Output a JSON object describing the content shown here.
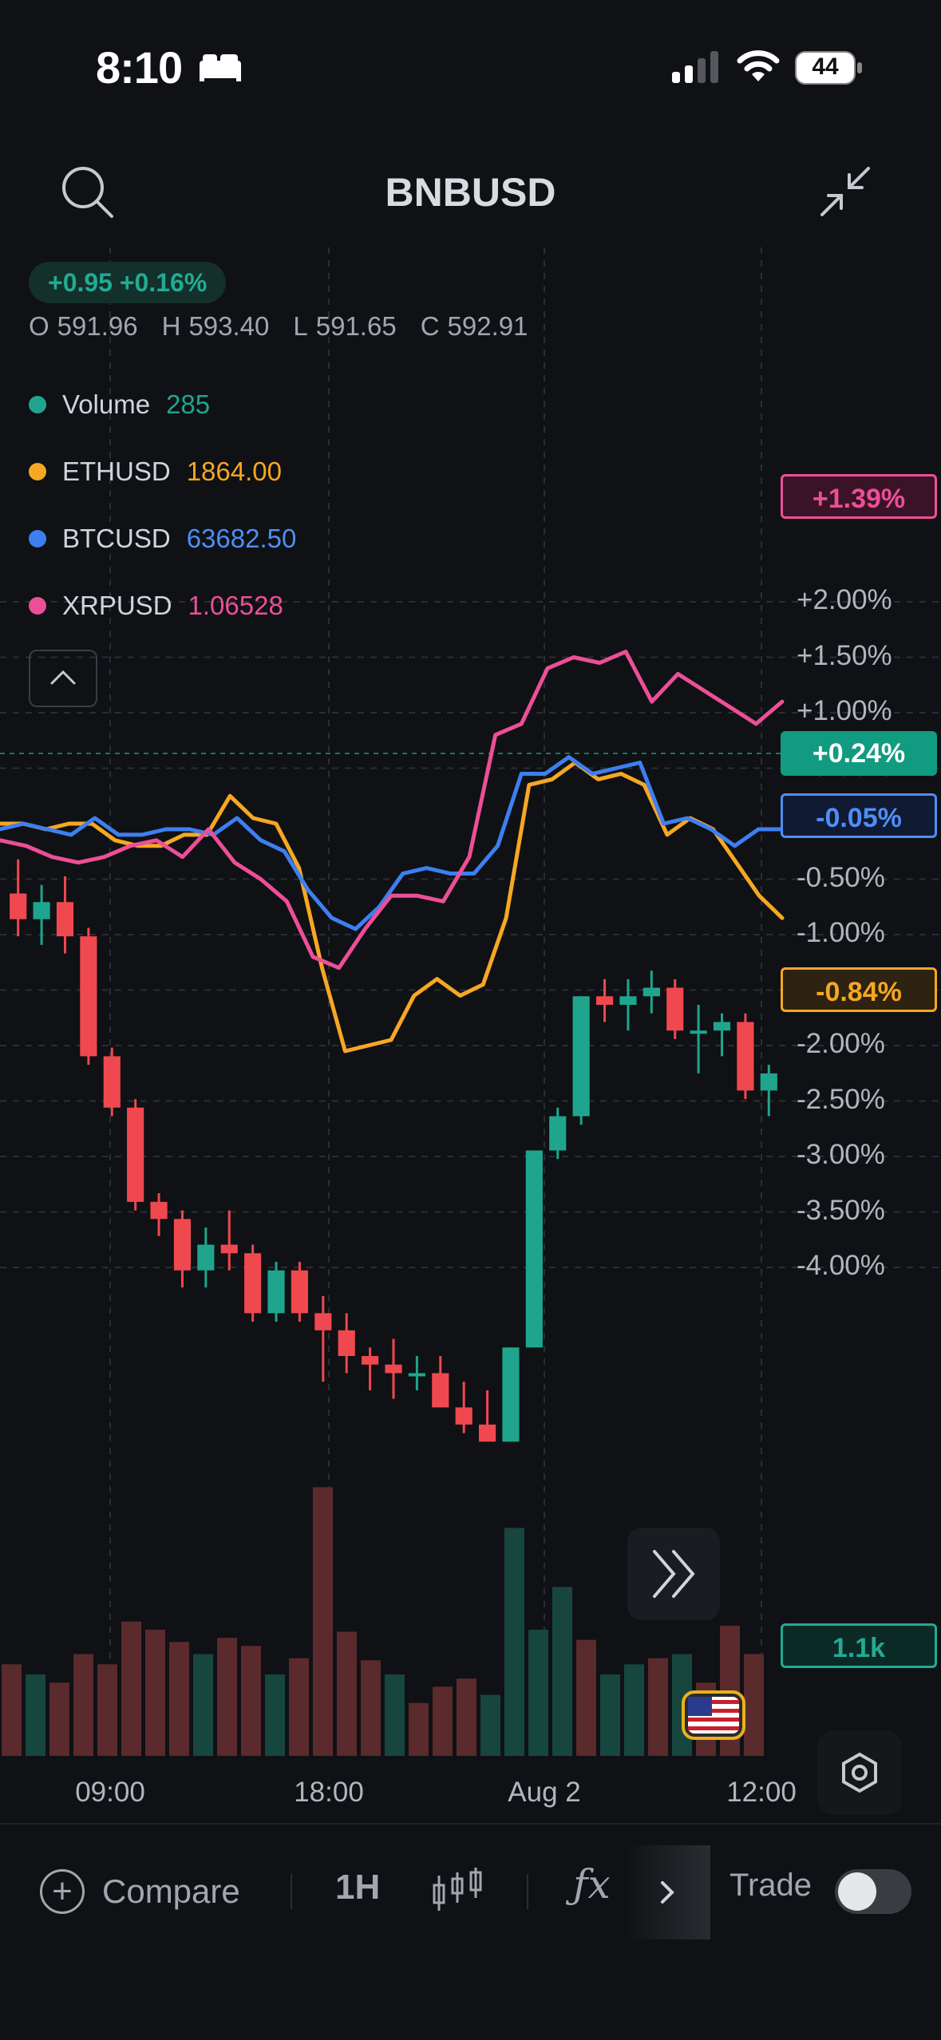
{
  "status_bar": {
    "time": "8:10",
    "battery": "44",
    "icons": [
      "bed-icon",
      "signal-icon",
      "wifi-icon",
      "battery-icon"
    ]
  },
  "header": {
    "symbol": "BNBUSD",
    "icons": [
      "search-icon",
      "collapse-icon"
    ]
  },
  "legend": {
    "change": "+0.95 +0.16%",
    "ohlc": [
      {
        "k": "O",
        "v": "591.96"
      },
      {
        "k": "H",
        "v": "593.40"
      },
      {
        "k": "L",
        "v": "591.65"
      },
      {
        "k": "C",
        "v": "592.91"
      }
    ],
    "rows": [
      {
        "name": "Volume",
        "value": "285",
        "color": "#1fa58e"
      },
      {
        "name": "ETHUSD",
        "value": "1864.00",
        "color": "#f6a723"
      },
      {
        "name": "BTCUSD",
        "value": "63682.50",
        "color": "#3d7ff0"
      },
      {
        "name": "XRPUSD",
        "value": "1.06528",
        "color": "#ec4f97"
      }
    ]
  },
  "price_tags": [
    {
      "label": "+1.39%",
      "value": 1.39,
      "color": "#ec4f97",
      "bg": "#3a1426",
      "style": "outline"
    },
    {
      "label": "+0.24%",
      "value": 0.24,
      "color": "#ffffff",
      "bg": "#119b80",
      "style": "solid"
    },
    {
      "label": "-0.05%",
      "value": -0.05,
      "color": "#4f8ef5",
      "bg": "#101a33",
      "style": "outline"
    },
    {
      "label": "-0.84%",
      "value": -0.84,
      "color": "#f6a723",
      "bg": "#2e2210",
      "style": "outline"
    },
    {
      "label": "1.1k",
      "color": "#22ab94",
      "bg": "#0c2a25",
      "style": "outline"
    }
  ],
  "chart_data": {
    "type": "line",
    "title": "BNBUSD",
    "y_unit": "%",
    "ylim": [
      -4.25,
      2.25
    ],
    "y_ticks": [
      "+2.00%",
      "+1.50%",
      "+1.00%",
      "+0.50%",
      "0.00%",
      "-0.50%",
      "-1.00%",
      "-1.50%",
      "-2.00%",
      "-2.50%",
      "-3.00%",
      "-3.50%",
      "-4.00%"
    ],
    "x_ticks": [
      "09:00",
      "18:00",
      "Aug 2",
      "12:00"
    ],
    "grid": true,
    "series": [
      {
        "name": "ETHUSD",
        "color": "#f6a723",
        "values": [
          0.0,
          0.0,
          -0.05,
          0.0,
          0.0,
          -0.15,
          -0.2,
          -0.2,
          -0.1,
          -0.1,
          0.25,
          0.05,
          0.0,
          -0.4,
          -1.3,
          -2.05,
          -2.0,
          -1.95,
          -1.55,
          -1.4,
          -1.55,
          -1.45,
          -0.85,
          0.35,
          0.4,
          0.55,
          0.4,
          0.45,
          0.35,
          -0.1,
          0.05,
          -0.05,
          -0.35,
          -0.65,
          -0.85
        ]
      },
      {
        "name": "BTCUSD",
        "color": "#3d7ff0",
        "values": [
          -0.05,
          0.0,
          -0.05,
          -0.1,
          0.05,
          -0.1,
          -0.1,
          -0.05,
          -0.05,
          -0.1,
          0.05,
          -0.15,
          -0.25,
          -0.6,
          -0.85,
          -0.95,
          -0.75,
          -0.45,
          -0.4,
          -0.45,
          -0.45,
          -0.2,
          0.45,
          0.45,
          0.6,
          0.45,
          0.5,
          0.55,
          0.0,
          0.05,
          -0.05,
          -0.2,
          -0.05,
          -0.05
        ]
      },
      {
        "name": "XRPUSD",
        "color": "#ec4f97",
        "values": [
          -0.15,
          -0.2,
          -0.3,
          -0.35,
          -0.3,
          -0.2,
          -0.15,
          -0.3,
          -0.05,
          -0.35,
          -0.5,
          -0.7,
          -1.2,
          -1.3,
          -0.95,
          -0.65,
          -0.65,
          -0.7,
          -0.3,
          0.8,
          0.9,
          1.4,
          1.5,
          1.45,
          1.55,
          1.1,
          1.35,
          1.2,
          1.05,
          0.9,
          1.1
        ]
      }
    ],
    "candles": [
      {
        "o": 591.9,
        "h": 592.3,
        "l": 591.4,
        "c": 591.6
      },
      {
        "o": 591.6,
        "h": 592.0,
        "l": 591.3,
        "c": 591.8
      },
      {
        "o": 591.8,
        "h": 592.1,
        "l": 591.2,
        "c": 591.4
      },
      {
        "o": 591.4,
        "h": 591.5,
        "l": 589.9,
        "c": 590.0
      },
      {
        "o": 590.0,
        "h": 590.1,
        "l": 589.3,
        "c": 589.4
      },
      {
        "o": 589.4,
        "h": 589.5,
        "l": 588.2,
        "c": 588.3
      },
      {
        "o": 588.3,
        "h": 588.4,
        "l": 587.9,
        "c": 588.1
      },
      {
        "o": 588.1,
        "h": 588.2,
        "l": 587.3,
        "c": 587.5
      },
      {
        "o": 587.5,
        "h": 588.0,
        "l": 587.3,
        "c": 587.8
      },
      {
        "o": 587.8,
        "h": 588.2,
        "l": 587.5,
        "c": 587.7
      },
      {
        "o": 587.7,
        "h": 587.8,
        "l": 586.9,
        "c": 587.0
      },
      {
        "o": 587.0,
        "h": 587.6,
        "l": 586.9,
        "c": 587.5
      },
      {
        "o": 587.5,
        "h": 587.6,
        "l": 586.9,
        "c": 587.0
      },
      {
        "o": 587.0,
        "h": 587.2,
        "l": 586.2,
        "c": 586.8
      },
      {
        "o": 586.8,
        "h": 587.0,
        "l": 586.3,
        "c": 586.5
      },
      {
        "o": 586.5,
        "h": 586.6,
        "l": 586.1,
        "c": 586.4
      },
      {
        "o": 586.4,
        "h": 586.7,
        "l": 586.0,
        "c": 586.3
      },
      {
        "o": 586.3,
        "h": 586.5,
        "l": 586.1,
        "c": 586.3
      },
      {
        "o": 586.3,
        "h": 586.5,
        "l": 585.9,
        "c": 585.9
      },
      {
        "o": 585.9,
        "h": 586.2,
        "l": 585.6,
        "c": 585.7
      },
      {
        "o": 585.7,
        "h": 586.1,
        "l": 585.5,
        "c": 585.5
      },
      {
        "o": 585.5,
        "h": 586.6,
        "l": 585.5,
        "c": 586.6
      },
      {
        "o": 586.6,
        "h": 588.9,
        "l": 586.6,
        "c": 588.9
      },
      {
        "o": 588.9,
        "h": 589.4,
        "l": 588.8,
        "c": 589.3
      },
      {
        "o": 589.3,
        "h": 590.7,
        "l": 589.2,
        "c": 590.7
      },
      {
        "o": 590.7,
        "h": 590.9,
        "l": 590.4,
        "c": 590.6
      },
      {
        "o": 590.6,
        "h": 590.9,
        "l": 590.3,
        "c": 590.7
      },
      {
        "o": 590.7,
        "h": 591.0,
        "l": 590.5,
        "c": 590.8
      },
      {
        "o": 590.8,
        "h": 590.9,
        "l": 590.2,
        "c": 590.3
      },
      {
        "o": 590.3,
        "h": 590.6,
        "l": 589.8,
        "c": 590.3
      },
      {
        "o": 590.3,
        "h": 590.5,
        "l": 590.0,
        "c": 590.4
      },
      {
        "o": 590.4,
        "h": 590.5,
        "l": 589.5,
        "c": 589.6
      },
      {
        "o": 589.6,
        "h": 589.9,
        "l": 589.3,
        "c": 589.8
      }
    ],
    "volume": [
      {
        "v": 0.45,
        "up": false
      },
      {
        "v": 0.4,
        "up": true
      },
      {
        "v": 0.36,
        "up": false
      },
      {
        "v": 0.5,
        "up": false
      },
      {
        "v": 0.45,
        "up": false
      },
      {
        "v": 0.66,
        "up": false
      },
      {
        "v": 0.62,
        "up": false
      },
      {
        "v": 0.56,
        "up": false
      },
      {
        "v": 0.5,
        "up": true
      },
      {
        "v": 0.58,
        "up": false
      },
      {
        "v": 0.54,
        "up": false
      },
      {
        "v": 0.4,
        "up": true
      },
      {
        "v": 0.48,
        "up": false
      },
      {
        "v": 1.32,
        "up": false
      },
      {
        "v": 0.61,
        "up": false
      },
      {
        "v": 0.47,
        "up": false
      },
      {
        "v": 0.4,
        "up": true
      },
      {
        "v": 0.26,
        "up": false
      },
      {
        "v": 0.34,
        "up": false
      },
      {
        "v": 0.38,
        "up": false
      },
      {
        "v": 0.3,
        "up": true
      },
      {
        "v": 1.12,
        "up": true
      },
      {
        "v": 0.62,
        "up": true
      },
      {
        "v": 0.83,
        "up": true
      },
      {
        "v": 0.57,
        "up": false
      },
      {
        "v": 0.4,
        "up": true
      },
      {
        "v": 0.45,
        "up": true
      },
      {
        "v": 0.48,
        "up": false
      },
      {
        "v": 0.5,
        "up": true
      },
      {
        "v": 0.36,
        "up": false
      },
      {
        "v": 0.64,
        "up": false
      },
      {
        "v": 0.5,
        "up": false
      }
    ]
  },
  "toolbar": {
    "compare_label": "Compare",
    "interval": "1H",
    "fx_label": "ƒx",
    "trade_label": "Trade",
    "trade_enabled": false
  }
}
